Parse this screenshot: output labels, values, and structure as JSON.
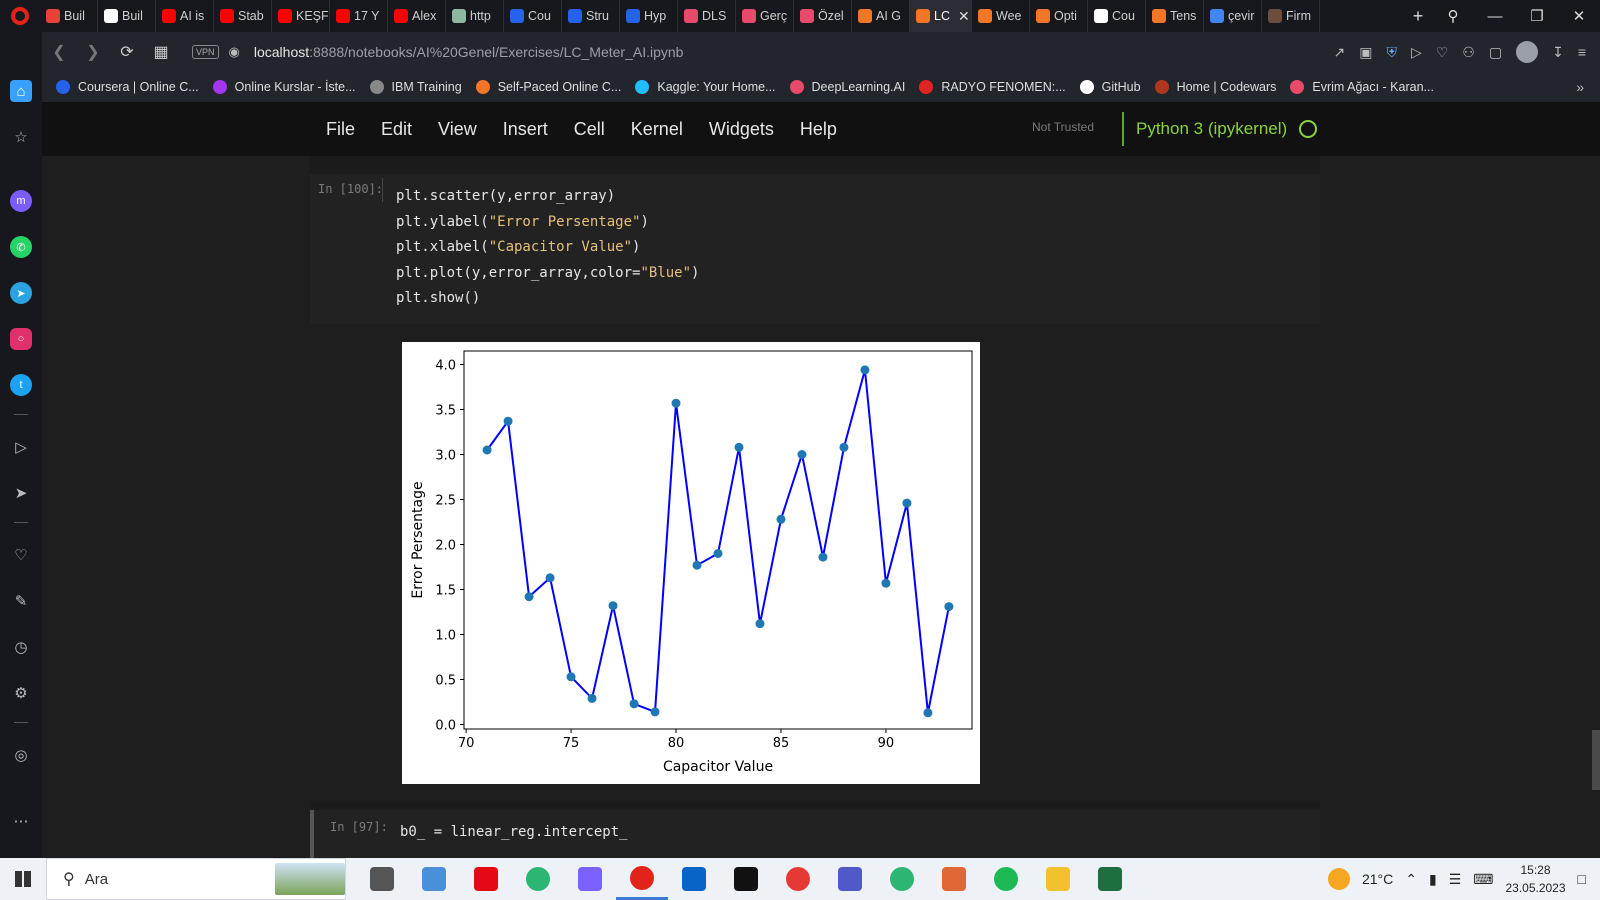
{
  "browser": {
    "tabs": [
      {
        "label": "Buil",
        "color": "#ea4335"
      },
      {
        "label": "Buil",
        "color": "#ffffff"
      },
      {
        "label": "AI is",
        "color": "#ff0000"
      },
      {
        "label": "Stab",
        "color": "#ff0000"
      },
      {
        "label": "KEŞF",
        "color": "#ff0000"
      },
      {
        "label": "17 Y",
        "color": "#ff0000"
      },
      {
        "label": "Alex",
        "color": "#ff0000"
      },
      {
        "label": "http",
        "color": "#8fb8a0"
      },
      {
        "label": "Cou",
        "color": "#2563eb"
      },
      {
        "label": "Stru",
        "color": "#2563eb"
      },
      {
        "label": "Hyp",
        "color": "#2563eb"
      },
      {
        "label": "DLS",
        "color": "#e84b6a"
      },
      {
        "label": "Gerç",
        "color": "#e84b6a"
      },
      {
        "label": "Özel",
        "color": "#e84b6a"
      },
      {
        "label": "AI G",
        "color": "#f37626"
      },
      {
        "label": "LC",
        "color": "#f37626",
        "active": true
      },
      {
        "label": "Wee",
        "color": "#f37626"
      },
      {
        "label": "Opti",
        "color": "#f37626"
      },
      {
        "label": "Cou",
        "color": "#ffffff"
      },
      {
        "label": "Tens",
        "color": "#f37626"
      },
      {
        "label": "çevir",
        "color": "#4285f4"
      },
      {
        "label": "Firm",
        "color": "#6b4e3d"
      }
    ],
    "url_host": "localhost",
    "url_path": ":8888/notebooks/AI%20Genel/Exercises/LC_Meter_AI.ipynb",
    "vpn_label": "VPN",
    "bookmarks": [
      {
        "label": "Coursera | Online C...",
        "color": "#2563eb"
      },
      {
        "label": "Online Kurslar - İste...",
        "color": "#a435f0"
      },
      {
        "label": "IBM Training",
        "color": "#888888"
      },
      {
        "label": "Self-Paced Online C...",
        "color": "#f37626"
      },
      {
        "label": "Kaggle: Your Home...",
        "color": "#20beff"
      },
      {
        "label": "DeepLearning.AI",
        "color": "#e84b6a"
      },
      {
        "label": "RADYO FENOMEN:...",
        "color": "#e02424"
      },
      {
        "label": "GitHub",
        "color": "#ffffff"
      },
      {
        "label": "Home | Codewars",
        "color": "#b1361e"
      },
      {
        "label": "Evrim Ağacı - Karan...",
        "color": "#e84b6a"
      }
    ]
  },
  "jupyter": {
    "menu": [
      "File",
      "Edit",
      "View",
      "Insert",
      "Cell",
      "Kernel",
      "Widgets",
      "Help"
    ],
    "trusted": "Not Trusted",
    "kernel": "Python 3 (ipykernel)",
    "cell1": {
      "prompt": "In [100]:",
      "lines": [
        {
          "pre": "plt.scatter(y,error_array)",
          "str": "",
          "post": ""
        },
        {
          "pre": "plt.ylabel(",
          "str": "\"Error Persentage\"",
          "post": ")"
        },
        {
          "pre": "plt.xlabel(",
          "str": "\"Capacitor Value\"",
          "post": ")"
        },
        {
          "pre": "plt.plot(y,error_array,color=",
          "str": "\"Blue\"",
          "post": ")"
        },
        {
          "pre": "plt.show()",
          "str": "",
          "post": ""
        }
      ]
    },
    "cell2": {
      "prompt": "In [97]:",
      "code": "b0_ = linear_reg.intercept_"
    }
  },
  "chart_data": {
    "type": "line",
    "xlabel": "Capacitor Value",
    "ylabel": "Error Persentage",
    "xlim": [
      69.9,
      94.1
    ],
    "ylim": [
      -0.05,
      4.15
    ],
    "xticks": [
      70,
      75,
      80,
      85,
      90
    ],
    "yticks": [
      0.0,
      0.5,
      1.0,
      1.5,
      2.0,
      2.5,
      3.0,
      3.5,
      4.0
    ],
    "color": "#0000ff",
    "marker_color": "#1f77b4",
    "x": [
      71,
      72,
      73,
      74,
      75,
      76,
      77,
      78,
      79,
      80,
      81,
      82,
      83,
      84,
      85,
      86,
      87,
      88,
      89,
      90,
      91,
      92,
      93
    ],
    "y": [
      3.05,
      3.37,
      1.42,
      1.63,
      0.53,
      0.29,
      1.32,
      0.23,
      0.14,
      3.57,
      1.77,
      1.9,
      3.08,
      1.12,
      2.28,
      3.0,
      1.86,
      3.08,
      3.94,
      1.57,
      2.46,
      0.13,
      1.31
    ]
  },
  "taskbar": {
    "search_placeholder": "Ara",
    "apps": [
      {
        "name": "task-view",
        "color": "#555555"
      },
      {
        "name": "file-manager-2",
        "color": "#4a8fd9"
      },
      {
        "name": "netflix",
        "color": "#e50914"
      },
      {
        "name": "refresh-app",
        "color": "#2bb673"
      },
      {
        "name": "browser-2",
        "color": "#7b61ff"
      },
      {
        "name": "opera",
        "color": "#e2231a",
        "active": true
      },
      {
        "name": "mail",
        "color": "#0a64c8"
      },
      {
        "name": "notion",
        "color": "#111111"
      },
      {
        "name": "tomato",
        "color": "#e53935"
      },
      {
        "name": "teams",
        "color": "#5059c9"
      },
      {
        "name": "refresh-app-2",
        "color": "#2bb673"
      },
      {
        "name": "matlab",
        "color": "#e16737"
      },
      {
        "name": "spotify",
        "color": "#1db954"
      },
      {
        "name": "explorer",
        "color": "#f2c12e"
      },
      {
        "name": "excel",
        "color": "#1d6f42"
      }
    ],
    "temperature": "21°C",
    "time": "15:28",
    "date": "23.05.2023"
  }
}
